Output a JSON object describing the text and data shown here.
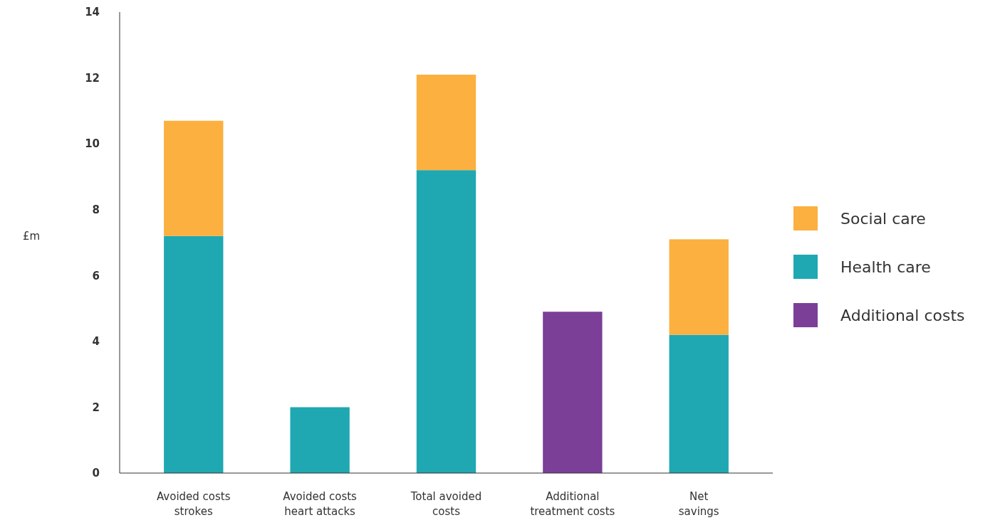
{
  "chart_data": {
    "type": "bar",
    "stacked": true,
    "ylabel": "£m",
    "categories": [
      "Avoided costs\nstrokes",
      "Avoided costs\nheart attacks",
      "Total avoided\ncosts",
      "Additional\ntreatment costs",
      "Net\nsavings"
    ],
    "series": [
      {
        "name": "Additional costs",
        "color": "#7b3f98",
        "values": [
          null,
          null,
          null,
          4.9,
          null
        ]
      },
      {
        "name": "Health care",
        "color": "#1fa8b2",
        "values": [
          7.2,
          2.0,
          9.2,
          null,
          4.2
        ]
      },
      {
        "name": "Social care",
        "color": "#fbb040",
        "values": [
          3.5,
          null,
          2.9,
          null,
          2.9
        ]
      }
    ],
    "ylim": [
      0,
      14
    ],
    "yticks": [
      0,
      2,
      4,
      6,
      8,
      10,
      12,
      14
    ],
    "grid": false,
    "legend": "right"
  }
}
